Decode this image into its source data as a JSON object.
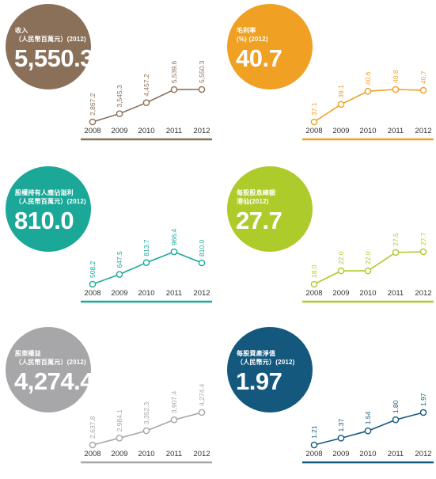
{
  "chart_data": [
    {
      "type": "line",
      "title": "收入\n（人民幣百萬元）(2012)",
      "headline": "5,550.3",
      "color": "#8B7059",
      "categories": [
        "2008",
        "2009",
        "2010",
        "2011",
        "2012"
      ],
      "values": [
        2867.2,
        3545.3,
        4457.2,
        5539.6,
        5550.3
      ],
      "value_labels": [
        "2,867.2",
        "3,545.3",
        "4,457.2",
        "5,539.6",
        "5,550.3"
      ]
    },
    {
      "type": "line",
      "title": "毛利率\n(%) (2012)",
      "headline": "40.7",
      "color": "#F0A023",
      "categories": [
        "2008",
        "2009",
        "2010",
        "2011",
        "2012"
      ],
      "values": [
        37.1,
        39.1,
        40.6,
        40.8,
        40.7
      ],
      "value_labels": [
        "37.1",
        "39.1",
        "40.6",
        "40.8",
        "40.7"
      ]
    },
    {
      "type": "line",
      "title": "股權持有人應佔溢利\n（人民幣百萬元）(2012)",
      "headline": "810.0",
      "color": "#1BA899",
      "categories": [
        "2008",
        "2009",
        "2010",
        "2011",
        "2012"
      ],
      "values": [
        508.2,
        647.5,
        813.7,
        966.4,
        810.0
      ],
      "value_labels": [
        "508.2",
        "647.5",
        "813.7",
        "966.4",
        "810.0"
      ]
    },
    {
      "type": "line",
      "title": "每股股息總額\n港仙(2012)",
      "headline": "27.7",
      "color": "#AECB2C",
      "categories": [
        "2008",
        "2009",
        "2010",
        "2011",
        "2012"
      ],
      "values": [
        18.0,
        22.0,
        22.0,
        27.5,
        27.7
      ],
      "value_labels": [
        "18.0",
        "22.0",
        "22.0",
        "27.5",
        "27.7"
      ]
    },
    {
      "type": "line",
      "title": "股東權益\n（人民幣百萬元）(2012)",
      "headline": "4,274.4",
      "color": "#A7A7A9",
      "categories": [
        "2008",
        "2009",
        "2010",
        "2011",
        "2012"
      ],
      "values": [
        2637.8,
        2984.1,
        3352.3,
        3907.4,
        4274.4
      ],
      "value_labels": [
        "2,637.8",
        "2,984.1",
        "3,352.3",
        "3,907.4",
        "4,274.4"
      ]
    },
    {
      "type": "line",
      "title": "每股資產淨值\n（人民幣元）(2012)",
      "headline": "1.97",
      "color": "#14587D",
      "categories": [
        "2008",
        "2009",
        "2010",
        "2011",
        "2012"
      ],
      "values": [
        1.21,
        1.37,
        1.54,
        1.8,
        1.97
      ],
      "value_labels": [
        "1.21",
        "1.37",
        "1.54",
        "1.80",
        "1.97"
      ]
    }
  ]
}
